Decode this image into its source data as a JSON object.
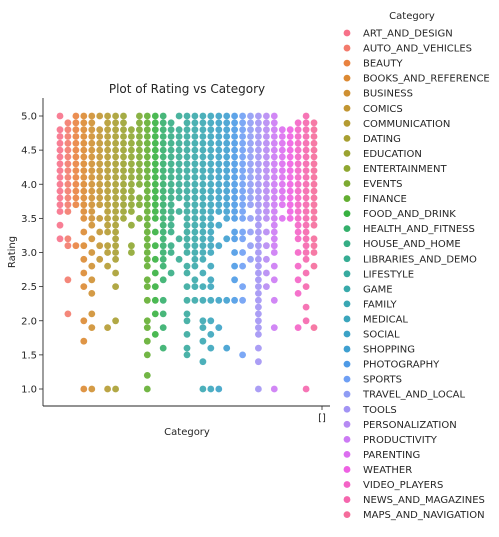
{
  "chart_data": {
    "type": "scatter",
    "title": "Plot of Rating vs Category",
    "xlabel": "Category",
    "ylabel": "Rating",
    "ylim": [
      0.78,
      5.22
    ],
    "yticks": [
      "1.0",
      "1.5",
      "2.0",
      "2.5",
      "3.0",
      "3.5",
      "4.0",
      "4.5",
      "5.0"
    ],
    "xticks": [
      "[]"
    ],
    "grid": false,
    "legend": {
      "title": "Category",
      "placement": "right-outside"
    },
    "series": [
      {
        "name": "ART_AND_DESIGN",
        "color": "#f77189",
        "values": [
          3.2,
          3.4,
          3.6,
          3.7,
          3.8,
          3.9,
          4.0,
          4.1,
          4.2,
          4.3,
          4.4,
          4.5,
          4.6,
          4.7,
          4.8,
          5.0
        ]
      },
      {
        "name": "AUTO_AND_VEHICLES",
        "color": "#f37a6c",
        "values": [
          2.1,
          2.6,
          3.1,
          3.2,
          3.6,
          3.7,
          3.8,
          3.9,
          4.0,
          4.1,
          4.2,
          4.3,
          4.4,
          4.5,
          4.6,
          4.7,
          4.8,
          4.9
        ]
      },
      {
        "name": "BEAUTY",
        "color": "#e9823f",
        "values": [
          3.1,
          3.7,
          3.8,
          3.9,
          4.0,
          4.1,
          4.2,
          4.3,
          4.4,
          4.5,
          4.6,
          4.7,
          4.8,
          4.9,
          5.0
        ]
      },
      {
        "name": "BOOKS_AND_REFERENCE",
        "color": "#dc8932",
        "values": [
          1.0,
          1.7,
          2.0,
          2.5,
          2.7,
          2.9,
          3.1,
          3.3,
          3.5,
          3.6,
          3.7,
          3.8,
          3.9,
          4.0,
          4.1,
          4.2,
          4.3,
          4.4,
          4.5,
          4.6,
          4.7,
          4.8,
          4.9,
          5.0
        ]
      },
      {
        "name": "BUSINESS",
        "color": "#cf9032",
        "values": [
          1.0,
          1.9,
          2.1,
          2.4,
          2.6,
          2.8,
          3.0,
          3.2,
          3.4,
          3.5,
          3.6,
          3.7,
          3.8,
          3.9,
          4.0,
          4.1,
          4.2,
          4.3,
          4.4,
          4.5,
          4.6,
          4.7,
          4.8,
          4.9,
          5.0
        ]
      },
      {
        "name": "COMICS",
        "color": "#c29632",
        "values": [
          2.9,
          3.1,
          3.3,
          3.5,
          3.7,
          3.8,
          3.9,
          4.0,
          4.1,
          4.2,
          4.3,
          4.4,
          4.5,
          4.6,
          4.7,
          4.8,
          5.0
        ]
      },
      {
        "name": "COMMUNICATION",
        "color": "#b59b31",
        "values": [
          1.0,
          1.9,
          2.8,
          3.0,
          3.1,
          3.3,
          3.4,
          3.5,
          3.6,
          3.7,
          3.8,
          3.9,
          4.0,
          4.1,
          4.2,
          4.3,
          4.4,
          4.5,
          4.6,
          4.7,
          4.8,
          4.9,
          5.0
        ]
      },
      {
        "name": "DATING",
        "color": "#a89f31",
        "values": [
          1.0,
          2.0,
          2.5,
          2.7,
          2.9,
          3.0,
          3.1,
          3.2,
          3.3,
          3.4,
          3.5,
          3.6,
          3.7,
          3.8,
          3.9,
          4.0,
          4.1,
          4.2,
          4.3,
          4.4,
          4.5,
          4.6,
          4.7,
          4.8,
          4.9,
          5.0
        ]
      },
      {
        "name": "EDUCATION",
        "color": "#9ba331",
        "values": [
          3.5,
          3.6,
          3.7,
          3.8,
          3.9,
          4.0,
          4.1,
          4.2,
          4.3,
          4.4,
          4.5,
          4.6,
          4.7,
          4.8,
          4.9,
          5.0
        ]
      },
      {
        "name": "ENTERTAINMENT",
        "color": "#8fa731",
        "values": [
          3.0,
          3.1,
          3.4,
          3.6,
          3.7,
          3.8,
          3.9,
          4.0,
          4.1,
          4.2,
          4.3,
          4.4,
          4.5,
          4.6,
          4.7,
          4.8
        ]
      },
      {
        "name": "EVENTS",
        "color": "#7daa31",
        "values": [
          3.5,
          3.7,
          3.8,
          4.0,
          4.1,
          4.2,
          4.3,
          4.4,
          4.5,
          4.6,
          4.7,
          4.8,
          4.9,
          5.0
        ]
      },
      {
        "name": "FINANCE",
        "color": "#63ae31",
        "values": [
          1.0,
          1.2,
          1.5,
          1.7,
          1.9,
          2.0,
          2.3,
          2.5,
          2.6,
          2.8,
          2.9,
          3.0,
          3.1,
          3.2,
          3.3,
          3.4,
          3.5,
          3.6,
          3.7,
          3.8,
          3.9,
          4.0,
          4.1,
          4.2,
          4.3,
          4.4,
          4.5,
          4.6,
          4.7,
          4.8,
          4.9,
          5.0
        ]
      },
      {
        "name": "FOOD_AND_DRINK",
        "color": "#37b140",
        "values": [
          1.8,
          2.1,
          2.3,
          2.5,
          2.7,
          2.9,
          3.1,
          3.3,
          3.5,
          3.6,
          3.7,
          3.8,
          3.9,
          4.0,
          4.1,
          4.2,
          4.3,
          4.4,
          4.5,
          4.6,
          4.7,
          4.8,
          4.9,
          5.0
        ]
      },
      {
        "name": "HEALTH_AND_FITNESS",
        "color": "#34af6b",
        "values": [
          1.6,
          1.9,
          2.1,
          2.3,
          2.6,
          2.8,
          2.9,
          3.0,
          3.1,
          3.2,
          3.3,
          3.4,
          3.5,
          3.6,
          3.7,
          3.8,
          3.9,
          4.0,
          4.1,
          4.2,
          4.3,
          4.4,
          4.5,
          4.6,
          4.7,
          4.8,
          4.9,
          5.0
        ]
      },
      {
        "name": "HOUSE_AND_HOME",
        "color": "#35ad84",
        "values": [
          2.7,
          3.0,
          3.1,
          3.3,
          3.4,
          3.5,
          3.6,
          3.7,
          3.8,
          3.9,
          4.0,
          4.1,
          4.2,
          4.3,
          4.4,
          4.5,
          4.6,
          4.7,
          4.8,
          4.9
        ]
      },
      {
        "name": "LIBRARIES_AND_DEMO",
        "color": "#36ac93",
        "values": [
          2.9,
          3.2,
          3.6,
          3.8,
          3.9,
          4.0,
          4.1,
          4.2,
          4.3,
          4.4,
          4.5,
          4.6,
          4.7,
          4.8,
          5.0
        ]
      },
      {
        "name": "LIFESTYLE",
        "color": "#37aa9f",
        "values": [
          1.5,
          1.6,
          1.8,
          2.0,
          2.1,
          2.3,
          2.5,
          2.7,
          2.8,
          3.0,
          3.1,
          3.2,
          3.3,
          3.4,
          3.5,
          3.6,
          3.7,
          3.8,
          3.9,
          4.0,
          4.1,
          4.2,
          4.3,
          4.4,
          4.5,
          4.6,
          4.7,
          4.8,
          4.9,
          5.0
        ]
      },
      {
        "name": "GAME",
        "color": "#38a9aa",
        "values": [
          2.3,
          2.5,
          2.6,
          2.8,
          2.9,
          3.0,
          3.1,
          3.2,
          3.3,
          3.4,
          3.5,
          3.6,
          3.7,
          3.8,
          3.9,
          4.0,
          4.1,
          4.2,
          4.3,
          4.4,
          4.5,
          4.6,
          4.7,
          4.8,
          4.9,
          5.0
        ]
      },
      {
        "name": "FAMILY",
        "color": "#39a7b3",
        "values": [
          1.0,
          1.4,
          1.7,
          1.9,
          2.0,
          2.3,
          2.5,
          2.7,
          2.9,
          3.0,
          3.1,
          3.2,
          3.3,
          3.4,
          3.5,
          3.6,
          3.7,
          3.8,
          3.9,
          4.0,
          4.1,
          4.2,
          4.3,
          4.4,
          4.5,
          4.6,
          4.7,
          4.8,
          4.9,
          5.0
        ]
      },
      {
        "name": "MEDICAL",
        "color": "#3aa5bc",
        "values": [
          1.0,
          1.6,
          1.8,
          2.0,
          2.3,
          2.5,
          2.6,
          2.8,
          3.0,
          3.1,
          3.2,
          3.3,
          3.4,
          3.5,
          3.6,
          3.7,
          3.8,
          3.9,
          4.0,
          4.1,
          4.2,
          4.3,
          4.4,
          4.5,
          4.6,
          4.7,
          4.8,
          4.9,
          5.0
        ]
      },
      {
        "name": "SOCIAL",
        "color": "#3ba2c6",
        "values": [
          1.0,
          1.9,
          2.3,
          3.1,
          3.4,
          3.6,
          3.7,
          3.8,
          3.9,
          4.0,
          4.1,
          4.2,
          4.3,
          4.4,
          4.5,
          4.6,
          4.7,
          4.8,
          4.9,
          5.0
        ]
      },
      {
        "name": "SHOPPING",
        "color": "#3e9fd0",
        "values": [
          1.6,
          2.3,
          3.2,
          3.5,
          3.6,
          3.7,
          3.8,
          3.9,
          4.0,
          4.1,
          4.2,
          4.3,
          4.4,
          4.5,
          4.6,
          4.7,
          4.8,
          4.9,
          5.0
        ]
      },
      {
        "name": "PHOTOGRAPHY",
        "color": "#4d9ae6",
        "values": [
          2.3,
          2.6,
          2.8,
          3.0,
          3.2,
          3.3,
          3.5,
          3.6,
          3.7,
          3.8,
          3.9,
          4.0,
          4.1,
          4.2,
          4.3,
          4.4,
          4.5,
          4.6,
          4.7,
          4.8,
          4.9,
          5.0
        ]
      },
      {
        "name": "SPORTS",
        "color": "#6e9ff4",
        "values": [
          1.5,
          2.3,
          2.5,
          2.8,
          3.0,
          3.2,
          3.3,
          3.5,
          3.6,
          3.7,
          3.8,
          3.9,
          4.0,
          4.1,
          4.2,
          4.3,
          4.4,
          4.5,
          4.6,
          4.7,
          4.8,
          4.9,
          5.0
        ]
      },
      {
        "name": "TRAVEL_AND_LOCAL",
        "color": "#8f9cf4",
        "values": [
          2.9,
          3.1,
          3.3,
          3.5,
          3.7,
          3.8,
          3.9,
          4.0,
          4.1,
          4.2,
          4.3,
          4.4,
          4.5,
          4.6,
          4.7,
          4.8,
          4.9,
          5.0
        ]
      },
      {
        "name": "TOOLS",
        "color": "#a293f4",
        "values": [
          1.0,
          1.4,
          1.6,
          1.8,
          1.9,
          2.0,
          2.1,
          2.2,
          2.3,
          2.4,
          2.5,
          2.6,
          2.7,
          2.8,
          2.9,
          3.0,
          3.1,
          3.2,
          3.3,
          3.4,
          3.5,
          3.6,
          3.7,
          3.8,
          3.9,
          4.0,
          4.1,
          4.2,
          4.3,
          4.4,
          4.5,
          4.6,
          4.7,
          4.8,
          4.9,
          5.0
        ]
      },
      {
        "name": "PERSONALIZATION",
        "color": "#b68af3",
        "values": [
          2.5,
          2.7,
          2.9,
          3.1,
          3.3,
          3.5,
          3.6,
          3.7,
          3.8,
          3.9,
          4.0,
          4.1,
          4.2,
          4.3,
          4.4,
          4.5,
          4.6,
          4.7,
          4.8,
          4.9,
          5.0
        ]
      },
      {
        "name": "PRODUCTIVITY",
        "color": "#cc7af4",
        "values": [
          1.0,
          1.9,
          2.3,
          2.6,
          2.8,
          3.0,
          3.1,
          3.2,
          3.3,
          3.4,
          3.5,
          3.6,
          3.7,
          3.8,
          3.9,
          4.0,
          4.1,
          4.2,
          4.3,
          4.4,
          4.5,
          4.6,
          4.7,
          4.8,
          4.9,
          5.0
        ]
      },
      {
        "name": "PARENTING",
        "color": "#dc6ef0",
        "values": [
          3.5,
          3.7,
          3.8,
          3.9,
          4.0,
          4.1,
          4.2,
          4.3,
          4.4,
          4.5,
          4.6,
          4.7,
          4.8
        ]
      },
      {
        "name": "WEATHER",
        "color": "#ee61e3",
        "values": [
          3.5,
          3.6,
          3.7,
          3.8,
          3.9,
          4.0,
          4.1,
          4.2,
          4.3,
          4.4,
          4.5,
          4.6,
          4.7,
          4.8
        ]
      },
      {
        "name": "VIDEO_PLAYERS",
        "color": "#f463c6",
        "values": [
          1.9,
          2.4,
          2.6,
          2.8,
          3.0,
          3.2,
          3.3,
          3.4,
          3.5,
          3.6,
          3.7,
          3.8,
          3.9,
          4.0,
          4.1,
          4.2,
          4.3,
          4.4,
          4.5,
          4.6,
          4.7,
          4.8,
          4.9
        ]
      },
      {
        "name": "NEWS_AND_MAGAZINES",
        "color": "#f566ad",
        "values": [
          1.0,
          2.0,
          2.2,
          2.5,
          2.7,
          2.9,
          3.0,
          3.1,
          3.2,
          3.3,
          3.4,
          3.5,
          3.6,
          3.7,
          3.8,
          3.9,
          4.0,
          4.1,
          4.2,
          4.3,
          4.4,
          4.5,
          4.6,
          4.7,
          4.8,
          4.9,
          5.0
        ]
      },
      {
        "name": "MAPS_AND_NAVIGATION",
        "color": "#f56c9b",
        "values": [
          1.9,
          2.8,
          3.0,
          3.1,
          3.2,
          3.4,
          3.5,
          3.6,
          3.7,
          3.8,
          3.9,
          4.0,
          4.1,
          4.2,
          4.3,
          4.4,
          4.5,
          4.6,
          4.7,
          4.8,
          4.9
        ]
      }
    ]
  }
}
